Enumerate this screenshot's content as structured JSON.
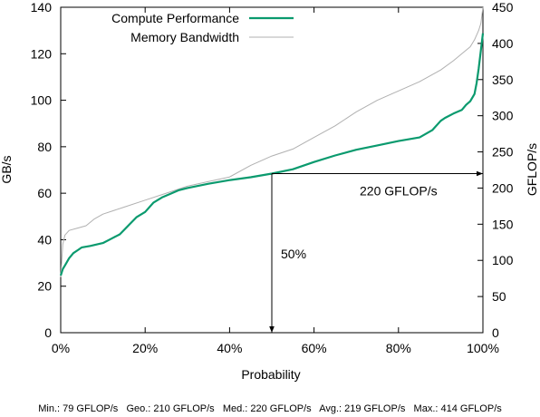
{
  "chart_data": {
    "type": "line",
    "xlabel": "Probability",
    "ylabel_left": "GB/s",
    "ylabel_right": "GFLOP/s",
    "x_ticks": [
      "0%",
      "20%",
      "40%",
      "60%",
      "80%",
      "100%"
    ],
    "x_tick_values": [
      0,
      20,
      40,
      60,
      80,
      100
    ],
    "y_left_ticks": [
      "0",
      "20",
      "40",
      "60",
      "80",
      "100",
      "120",
      "140"
    ],
    "y_left_tick_values": [
      0,
      20,
      40,
      60,
      80,
      100,
      120,
      140
    ],
    "y_right_ticks": [
      "0",
      "50",
      "100",
      "150",
      "200",
      "250",
      "300",
      "350",
      "400",
      "450"
    ],
    "y_right_tick_values": [
      0,
      50,
      100,
      150,
      200,
      250,
      300,
      350,
      400,
      450
    ],
    "xlim": [
      0,
      100
    ],
    "ylim_left": [
      0,
      140
    ],
    "ylim_right": [
      0,
      450
    ],
    "grid": false,
    "legend_position": "top-left",
    "series": [
      {
        "name": "Compute Performance",
        "axis": "right",
        "color": "#0a9a6e",
        "x": [
          0,
          0.5,
          1,
          2,
          3,
          4,
          5,
          7,
          10,
          12,
          14,
          16,
          18,
          20,
          22,
          24,
          26,
          28,
          30,
          35,
          40,
          45,
          50,
          55,
          60,
          65,
          70,
          75,
          80,
          85,
          88,
          90,
          91,
          93,
          95,
          96,
          97,
          98,
          98.5,
          99,
          99.5,
          100
        ],
        "y": [
          79,
          88,
          93,
          103,
          110,
          114,
          118,
          120,
          124,
          130,
          136,
          148,
          160,
          167,
          180,
          187,
          192,
          197,
          200,
          206,
          211,
          215,
          220,
          226,
          236,
          245,
          253,
          259,
          265,
          270,
          280,
          293,
          297,
          303,
          308,
          315,
          320,
          330,
          345,
          365,
          390,
          414
        ]
      },
      {
        "name": "Memory Bandwidth",
        "axis": "left",
        "color": "#b0b0b0",
        "x": [
          0,
          0.5,
          1,
          2,
          4,
          6,
          8,
          10,
          15,
          20,
          25,
          30,
          35,
          40,
          45,
          50,
          55,
          60,
          65,
          70,
          75,
          80,
          85,
          90,
          93,
          95,
          97,
          98,
          99,
          99.5,
          100
        ],
        "y": [
          24,
          38,
          42,
          44,
          45,
          46,
          49,
          51,
          54,
          57,
          60,
          63,
          65,
          67,
          72,
          76,
          79,
          84,
          89,
          95,
          100,
          104,
          108,
          113,
          117,
          120,
          123,
          126,
          130,
          133,
          140
        ]
      }
    ],
    "annotations": [
      {
        "text": "220 GFLOP/s",
        "type": "horizontal-arrow",
        "x_from": 50,
        "x_to": 100,
        "y_right": 220
      },
      {
        "text": "50%",
        "type": "vertical-arrow",
        "x": 50,
        "y_right_from": 220,
        "y_right_to": 0
      }
    ],
    "footer": "Min.: 79 GFLOP/s   Geo.: 210 GFLOP/s   Med.: 220 GFLOP/s   Avg.: 219 GFLOP/s   Max.: 414 GFLOP/s"
  }
}
